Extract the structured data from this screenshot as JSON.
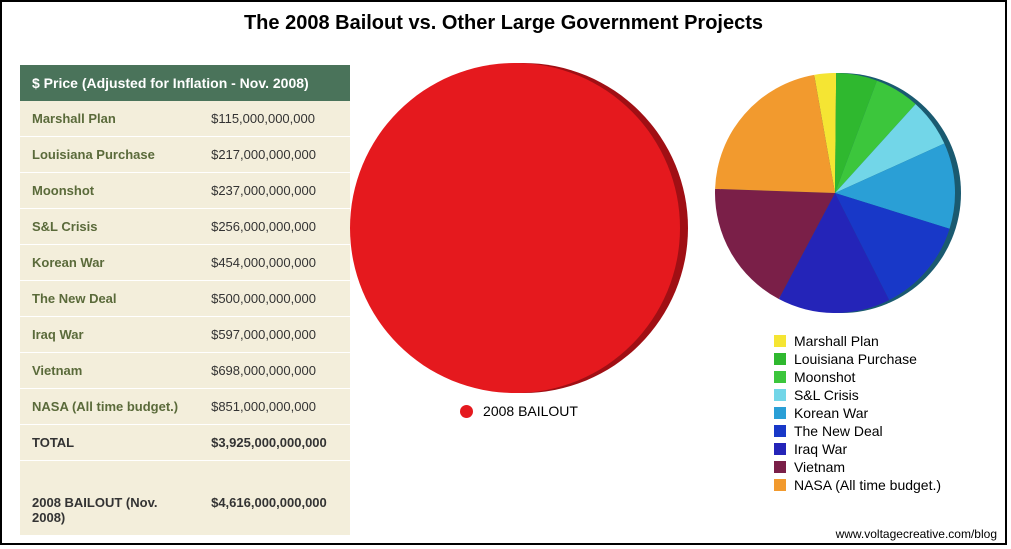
{
  "title": "The 2008 Bailout vs. Other Large Government Projects",
  "title_fontsize": 20,
  "title_color": "#000000",
  "frame_border_color": "#000000",
  "footer": "www.voltagecreative.com/blog",
  "footer_color": "#000000",
  "table": {
    "header": "$ Price (Adjusted for Inflation - Nov. 2008)",
    "header_bg": "#4a735a",
    "header_text_color": "#ffffff",
    "header_fontsize": 14,
    "body_bg": "#f3eedb",
    "label_color": "#5a6a3a",
    "value_color": "#333333",
    "cell_fontsize": 13,
    "rows": [
      {
        "label": "Marshall Plan",
        "value": "$115,000,000,000"
      },
      {
        "label": "Louisiana Purchase",
        "value": "$217,000,000,000"
      },
      {
        "label": "Moonshot",
        "value": "$237,000,000,000"
      },
      {
        "label": "S&L Crisis",
        "value": "$256,000,000,000"
      },
      {
        "label": "Korean War",
        "value": "$454,000,000,000"
      },
      {
        "label": "The New Deal",
        "value": "$500,000,000,000"
      },
      {
        "label": "Iraq War",
        "value": "$597,000,000,000"
      },
      {
        "label": "Vietnam",
        "value": "$698,000,000,000"
      },
      {
        "label": "NASA (All time budget.)",
        "value": "$851,000,000,000"
      }
    ],
    "total": {
      "label": "TOTAL",
      "value": "$3,925,000,000,000"
    },
    "bailout": {
      "label": "2008 BAILOUT (Nov. 2008)",
      "value": "$4,616,000,000,000"
    }
  },
  "big_pie": {
    "type": "pie",
    "diameter": 330,
    "color": "#e5191e",
    "shadow_color": "#a00f14",
    "legend_label": "2008 BAILOUT",
    "legend_color": "#e5191e"
  },
  "small_pie": {
    "type": "pie",
    "diameter": 240,
    "shadow_color": "#1a5a70",
    "slices": [
      {
        "label": "Marshall Plan",
        "value": 115,
        "color": "#f5e533"
      },
      {
        "label": "Louisiana Purchase",
        "value": 217,
        "color": "#2fb82f"
      },
      {
        "label": "Moonshot",
        "value": 237,
        "color": "#3cc63c"
      },
      {
        "label": "S&L Crisis",
        "value": 256,
        "color": "#72d6e8"
      },
      {
        "label": "Korean War",
        "value": 454,
        "color": "#2a9fd6"
      },
      {
        "label": "The New Deal",
        "value": 500,
        "color": "#1838c8"
      },
      {
        "label": "Iraq War",
        "value": 597,
        "color": "#2424b8"
      },
      {
        "label": "Vietnam",
        "value": 698,
        "color": "#7a1f48"
      },
      {
        "label": "NASA (All time budget.)",
        "value": 851,
        "color": "#f29a2e"
      }
    ],
    "legend_fontsize": 14,
    "legend_text_color": "#000000"
  }
}
